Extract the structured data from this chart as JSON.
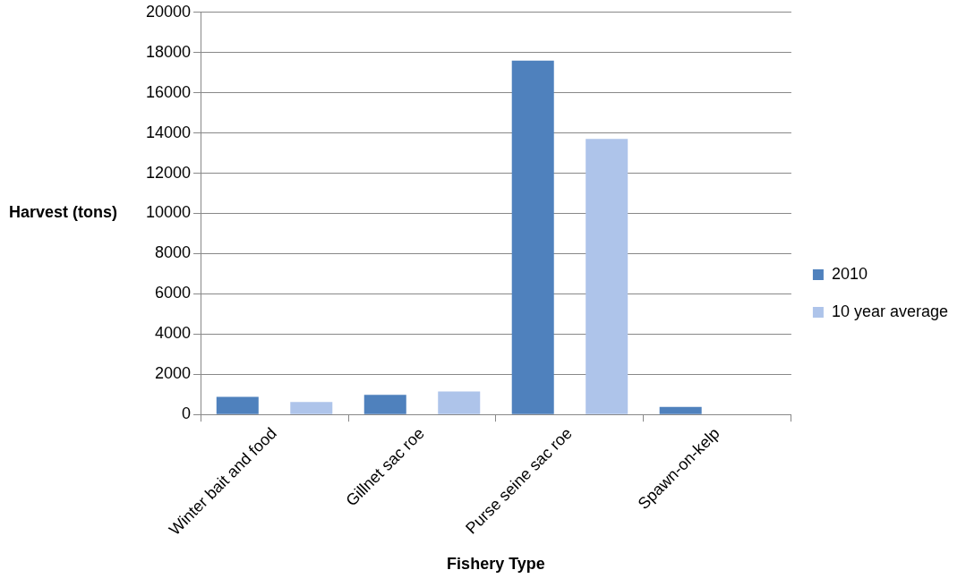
{
  "chart_data": {
    "type": "bar",
    "xlabel": "Fishery Type",
    "ylabel": "Harvest (tons)",
    "categories": [
      "Winter bait and food",
      "Gillnet sac roe",
      "Purse seine sac roe",
      "Spawn-on-kelp"
    ],
    "series": [
      {
        "name": "2010",
        "color": "#4f81bd",
        "values": [
          880,
          980,
          17600,
          380
        ]
      },
      {
        "name": "10 year average",
        "color": "#aec4ea",
        "values": [
          620,
          1140,
          13700,
          0
        ]
      }
    ],
    "ylim": [
      0,
      20000
    ],
    "yticks": [
      0,
      2000,
      4000,
      6000,
      8000,
      10000,
      12000,
      14000,
      16000,
      18000,
      20000
    ],
    "grid": "y",
    "legend": "right"
  }
}
